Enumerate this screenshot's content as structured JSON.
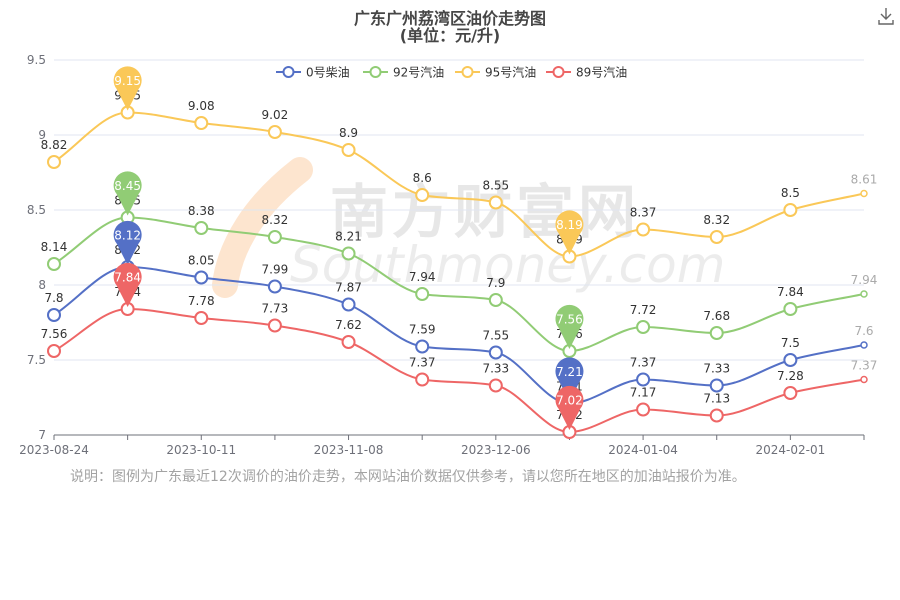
{
  "title_line1": "广东广州荔湾区油价走势图",
  "title_line2": "(单位：元/升)",
  "watermark": {
    "cn": "南方财富网",
    "en": "Southmoney.com"
  },
  "note": "说明：图例为广东最近12次调价的油价走势，本网站油价数据仅供参考，请以您所在地区的加油站报价为准。",
  "icons": {
    "download": "download-icon"
  },
  "chart_data": {
    "type": "line",
    "title": "广东广州荔湾区油价走势图",
    "subtitle": "(单位：元/升)",
    "xlabel": "",
    "ylabel": "",
    "ylim": [
      7,
      9.5
    ],
    "yticks": [
      "9.5",
      "9",
      "8.5",
      "8",
      "7.5",
      "7"
    ],
    "x_tick_labels": [
      "2023-08-24",
      "2023-10-11",
      "2023-11-08",
      "2023-12-06",
      "2024-01-04",
      "2024-02-01"
    ],
    "x_tick_points": [
      0,
      2,
      4,
      6,
      8,
      10
    ],
    "num_points": 12,
    "smooth": true,
    "grid": "horizontal",
    "legend_position": "top-center",
    "series": [
      {
        "name": "0号柴油",
        "color": "#5470c6",
        "values": [
          7.8,
          8.12,
          8.05,
          7.99,
          7.87,
          7.59,
          7.55,
          7.21,
          7.37,
          7.33,
          7.5,
          7.6
        ],
        "labels": [
          "7.8",
          "8.12",
          "8.05",
          "7.99",
          "7.87",
          "7.59",
          "7.55",
          "7.21",
          "7.37",
          "7.33",
          "7.5",
          "7.6"
        ]
      },
      {
        "name": "92号汽油",
        "color": "#91cc75",
        "values": [
          8.14,
          8.45,
          8.38,
          8.32,
          8.21,
          7.94,
          7.9,
          7.56,
          7.72,
          7.68,
          7.84,
          7.94
        ],
        "labels": [
          "8.14",
          "8.45",
          "8.38",
          "8.32",
          "8.21",
          "7.94",
          "7.9",
          "7.56",
          "7.72",
          "7.68",
          "7.84",
          "7.94"
        ]
      },
      {
        "name": "95号汽油",
        "color": "#fac858",
        "values": [
          8.82,
          9.15,
          9.08,
          9.02,
          8.9,
          8.6,
          8.55,
          8.19,
          8.37,
          8.32,
          8.5,
          8.61
        ],
        "labels": [
          "8.82",
          "9.15",
          "9.08",
          "9.02",
          "8.9",
          "8.6",
          "8.55",
          "8.19",
          "8.37",
          "8.32",
          "8.5",
          "8.61"
        ]
      },
      {
        "name": "89号汽油",
        "color": "#ee6666",
        "values": [
          7.56,
          7.84,
          7.78,
          7.73,
          7.62,
          7.37,
          7.33,
          7.02,
          7.17,
          7.13,
          7.28,
          7.37
        ],
        "labels": [
          "7.56",
          "7.84",
          "7.78",
          "7.73",
          "7.62",
          "7.37",
          "7.33",
          "7.02",
          "7.17",
          "7.13",
          "7.28",
          "7.37"
        ]
      }
    ],
    "markers": [
      {
        "series": 0,
        "point": 1,
        "label": "8.12",
        "kind": "max"
      },
      {
        "series": 0,
        "point": 7,
        "label": "7.21",
        "kind": "min"
      },
      {
        "series": 1,
        "point": 1,
        "label": "8.45",
        "kind": "max"
      },
      {
        "series": 1,
        "point": 7,
        "label": "7.56",
        "kind": "min"
      },
      {
        "series": 2,
        "point": 1,
        "label": "9.15",
        "kind": "max"
      },
      {
        "series": 2,
        "point": 7,
        "label": "8.19",
        "kind": "min"
      },
      {
        "series": 3,
        "point": 1,
        "label": "7.84",
        "kind": "max"
      },
      {
        "series": 3,
        "point": 7,
        "label": "7.02",
        "kind": "min"
      }
    ]
  }
}
